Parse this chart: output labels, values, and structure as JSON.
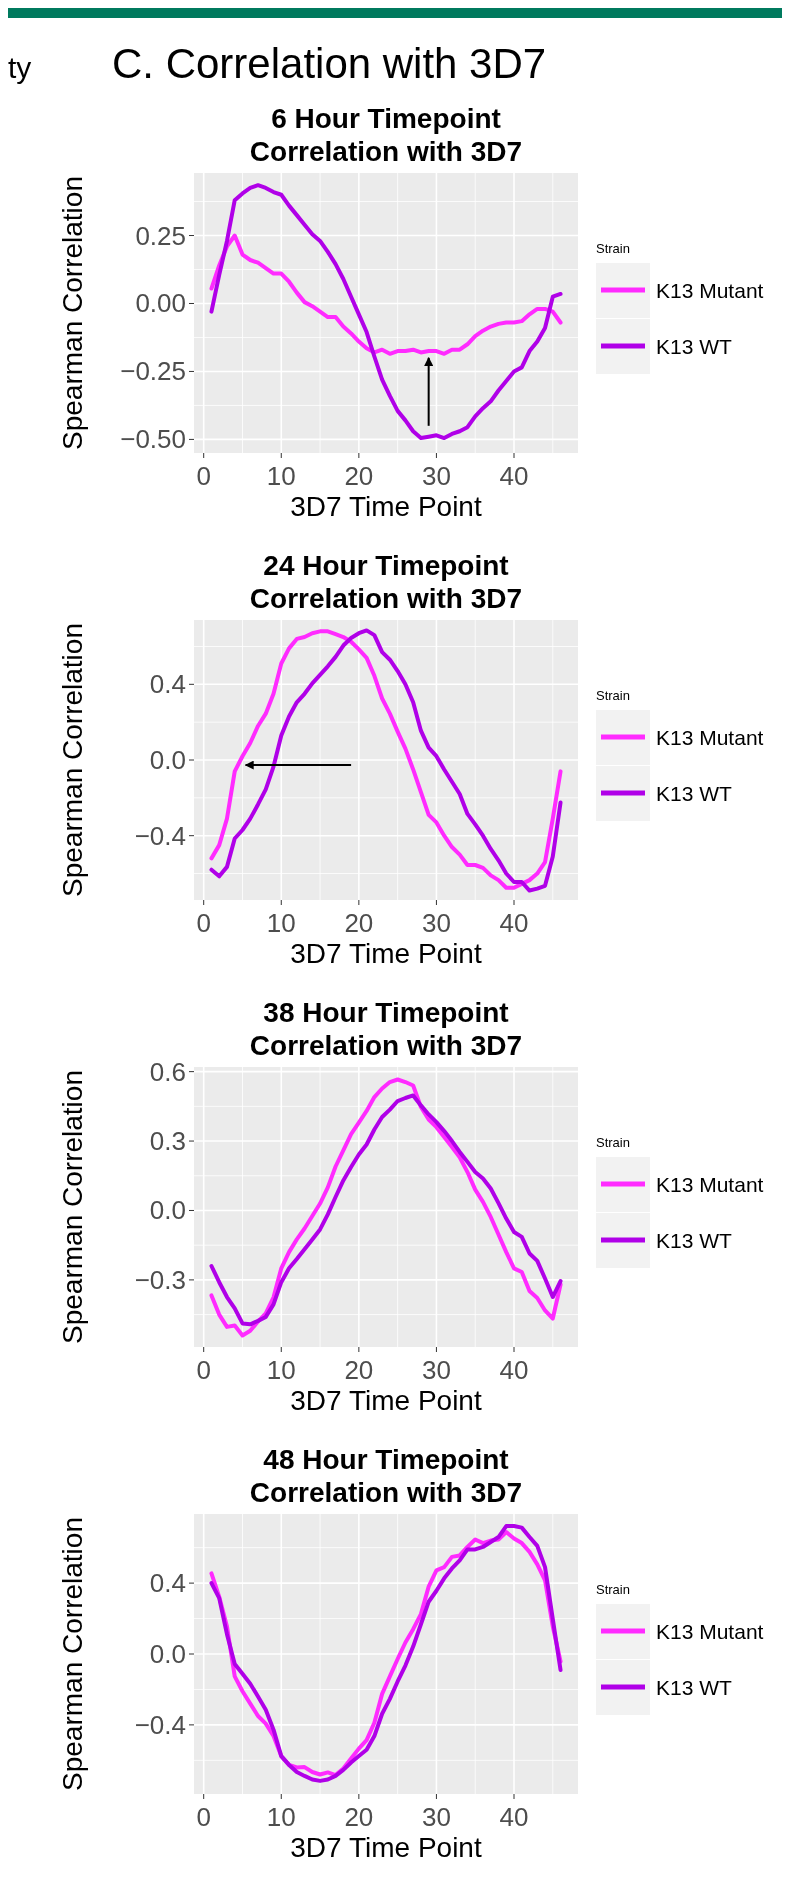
{
  "chart_data": [
    {
      "type": "line",
      "title": "6 Hour Timepoint\nCorrelation with 3D7",
      "xlabel": "3D7 Time Point",
      "ylabel": "Spearman Correlation",
      "legend_title": "Strain",
      "legend": "right",
      "grid": true,
      "annotations": [
        "ty",
        "C. Correlation with 3D7"
      ],
      "xlim": [
        -1.25,
        48.25
      ],
      "xticks": [
        0,
        10,
        20,
        30,
        40
      ],
      "ylim": [
        -0.55,
        0.48
      ],
      "yticks": [
        {
          "value": -0.5,
          "label": "−0.50"
        },
        {
          "value": -0.25,
          "label": "−0.25"
        },
        {
          "value": 0,
          "label": "0.00"
        },
        {
          "value": 0.25,
          "label": "0.25"
        }
      ],
      "x": [
        1,
        2,
        3,
        4,
        5,
        6,
        7,
        8,
        9,
        10,
        11,
        12,
        13,
        14,
        15,
        16,
        17,
        18,
        19,
        20,
        21,
        22,
        23,
        24,
        25,
        26,
        27,
        28,
        29,
        30,
        31,
        32,
        33,
        34,
        35,
        36,
        37,
        38,
        39,
        40,
        41,
        42,
        43,
        44,
        45,
        46
      ],
      "series": [
        {
          "name": "K13 Mutant",
          "color": "#ff2bff",
          "values": [
            0.055,
            0.14,
            0.21,
            0.25,
            0.18,
            0.16,
            0.15,
            0.13,
            0.11,
            0.11,
            0.08,
            0.04,
            0.005,
            -0.01,
            -0.03,
            -0.05,
            -0.05,
            -0.085,
            -0.11,
            -0.14,
            -0.165,
            -0.18,
            -0.17,
            -0.185,
            -0.175,
            -0.175,
            -0.17,
            -0.18,
            -0.175,
            -0.175,
            -0.185,
            -0.17,
            -0.17,
            -0.15,
            -0.12,
            -0.1,
            -0.085,
            -0.075,
            -0.07,
            -0.07,
            -0.065,
            -0.04,
            -0.02,
            -0.02,
            -0.03,
            -0.07
          ]
        },
        {
          "name": "K13 WT",
          "color": "#b000e8",
          "values": [
            -0.03,
            0.105,
            0.23,
            0.38,
            0.405,
            0.425,
            0.435,
            0.425,
            0.41,
            0.4,
            0.36,
            0.325,
            0.29,
            0.255,
            0.23,
            0.19,
            0.145,
            0.09,
            0.025,
            -0.04,
            -0.105,
            -0.195,
            -0.28,
            -0.34,
            -0.395,
            -0.43,
            -0.47,
            -0.495,
            -0.49,
            -0.485,
            -0.495,
            -0.48,
            -0.47,
            -0.455,
            -0.415,
            -0.385,
            -0.36,
            -0.32,
            -0.285,
            -0.25,
            -0.235,
            -0.175,
            -0.14,
            -0.09,
            0.025,
            0.035
          ]
        }
      ]
    },
    {
      "type": "line",
      "title": "24 Hour Timepoint\nCorrelation with 3D7",
      "xlabel": "3D7 Time Point",
      "ylabel": "Spearman Correlation",
      "legend_title": "Strain",
      "legend": "right",
      "grid": true,
      "xlim": [
        -1.25,
        48.25
      ],
      "xticks": [
        0,
        10,
        20,
        30,
        40
      ],
      "ylim": [
        -0.74,
        0.74
      ],
      "yticks": [
        {
          "value": -0.4,
          "label": "−0.4"
        },
        {
          "value": 0,
          "label": "0.0"
        },
        {
          "value": 0.4,
          "label": "0.4"
        }
      ],
      "x": [
        1,
        2,
        3,
        4,
        5,
        6,
        7,
        8,
        9,
        10,
        11,
        12,
        13,
        14,
        15,
        16,
        17,
        18,
        19,
        20,
        21,
        22,
        23,
        24,
        25,
        26,
        27,
        28,
        29,
        30,
        31,
        32,
        33,
        34,
        35,
        36,
        37,
        38,
        39,
        40,
        41,
        42,
        43,
        44,
        45,
        46
      ],
      "series": [
        {
          "name": "K13 Mutant",
          "color": "#ff2bff",
          "values": [
            -0.52,
            -0.45,
            -0.31,
            -0.06,
            0.02,
            0.09,
            0.18,
            0.245,
            0.35,
            0.51,
            0.59,
            0.64,
            0.65,
            0.67,
            0.68,
            0.68,
            0.665,
            0.65,
            0.625,
            0.585,
            0.54,
            0.445,
            0.325,
            0.245,
            0.15,
            0.06,
            -0.05,
            -0.17,
            -0.29,
            -0.33,
            -0.4,
            -0.46,
            -0.5,
            -0.555,
            -0.555,
            -0.57,
            -0.61,
            -0.635,
            -0.675,
            -0.675,
            -0.655,
            -0.635,
            -0.6,
            -0.54,
            -0.31,
            -0.06
          ]
        },
        {
          "name": "K13 WT",
          "color": "#b000e8",
          "values": [
            -0.58,
            -0.615,
            -0.565,
            -0.415,
            -0.37,
            -0.31,
            -0.235,
            -0.155,
            -0.035,
            0.13,
            0.23,
            0.305,
            0.35,
            0.405,
            0.45,
            0.495,
            0.545,
            0.605,
            0.645,
            0.67,
            0.685,
            0.66,
            0.57,
            0.53,
            0.47,
            0.4,
            0.305,
            0.155,
            0.065,
            0.02,
            -0.05,
            -0.115,
            -0.18,
            -0.285,
            -0.34,
            -0.4,
            -0.47,
            -0.53,
            -0.6,
            -0.645,
            -0.645,
            -0.69,
            -0.68,
            -0.665,
            -0.51,
            -0.225
          ]
        }
      ]
    },
    {
      "type": "line",
      "title": "38 Hour Timepoint\nCorrelation with 3D7",
      "xlabel": "3D7 Time Point",
      "ylabel": "Spearman Correlation",
      "legend_title": "Strain",
      "legend": "right",
      "grid": true,
      "xlim": [
        -1.25,
        48.25
      ],
      "xticks": [
        0,
        10,
        20,
        30,
        40
      ],
      "ylim": [
        -0.59,
        0.62
      ],
      "yticks": [
        {
          "value": -0.3,
          "label": "−0.3"
        },
        {
          "value": 0,
          "label": "0.0"
        },
        {
          "value": 0.3,
          "label": "0.3"
        },
        {
          "value": 0.6,
          "label": "0.6"
        }
      ],
      "x": [
        1,
        2,
        3,
        4,
        5,
        6,
        7,
        8,
        9,
        10,
        11,
        12,
        13,
        14,
        15,
        16,
        17,
        18,
        19,
        20,
        21,
        22,
        23,
        24,
        25,
        26,
        27,
        28,
        29,
        30,
        31,
        32,
        33,
        34,
        35,
        36,
        37,
        38,
        39,
        40,
        41,
        42,
        43,
        44,
        45,
        46
      ],
      "series": [
        {
          "name": "K13 Mutant",
          "color": "#ff2bff",
          "values": [
            -0.367,
            -0.45,
            -0.503,
            -0.497,
            -0.54,
            -0.52,
            -0.48,
            -0.445,
            -0.375,
            -0.25,
            -0.18,
            -0.125,
            -0.078,
            -0.024,
            0.03,
            0.1,
            0.19,
            0.26,
            0.33,
            0.38,
            0.43,
            0.49,
            0.527,
            0.555,
            0.566,
            0.555,
            0.54,
            0.447,
            0.393,
            0.36,
            0.317,
            0.274,
            0.23,
            0.166,
            0.09,
            0.037,
            -0.028,
            -0.104,
            -0.18,
            -0.25,
            -0.266,
            -0.348,
            -0.378,
            -0.432,
            -0.467,
            -0.32
          ]
        },
        {
          "name": "K13 WT",
          "color": "#b000e8",
          "values": [
            -0.24,
            -0.31,
            -0.374,
            -0.423,
            -0.488,
            -0.492,
            -0.477,
            -0.46,
            -0.406,
            -0.31,
            -0.25,
            -0.21,
            -0.168,
            -0.125,
            -0.082,
            -0.017,
            0.058,
            0.13,
            0.188,
            0.242,
            0.285,
            0.35,
            0.404,
            0.436,
            0.473,
            0.486,
            0.497,
            0.454,
            0.415,
            0.382,
            0.343,
            0.3,
            0.253,
            0.21,
            0.166,
            0.138,
            0.095,
            0.032,
            -0.035,
            -0.093,
            -0.114,
            -0.186,
            -0.218,
            -0.294,
            -0.374,
            -0.305
          ]
        }
      ]
    },
    {
      "type": "line",
      "title": "48 Hour Timepoint\nCorrelation with 3D7",
      "xlabel": "3D7 Time Point",
      "ylabel": "Spearman Correlation",
      "legend_title": "Strain",
      "legend": "right",
      "grid": true,
      "xlim": [
        -1.25,
        48.25
      ],
      "xticks": [
        0,
        10,
        20,
        30,
        40
      ],
      "ylim": [
        -0.79,
        0.79
      ],
      "yticks": [
        {
          "value": -0.4,
          "label": "−0.4"
        },
        {
          "value": 0,
          "label": "0.0"
        },
        {
          "value": 0.4,
          "label": "0.4"
        }
      ],
      "x": [
        1,
        2,
        3,
        4,
        5,
        6,
        7,
        8,
        9,
        10,
        11,
        12,
        13,
        14,
        15,
        16,
        17,
        18,
        19,
        20,
        21,
        22,
        23,
        24,
        25,
        26,
        27,
        28,
        29,
        30,
        31,
        32,
        33,
        34,
        35,
        36,
        37,
        38,
        39,
        40,
        41,
        42,
        43,
        44,
        45,
        46
      ],
      "series": [
        {
          "name": "K13 Mutant",
          "color": "#ff2bff",
          "values": [
            0.455,
            0.323,
            0.155,
            -0.126,
            -0.21,
            -0.28,
            -0.35,
            -0.393,
            -0.463,
            -0.576,
            -0.626,
            -0.64,
            -0.638,
            -0.666,
            -0.68,
            -0.668,
            -0.683,
            -0.646,
            -0.59,
            -0.534,
            -0.486,
            -0.388,
            -0.225,
            -0.126,
            -0.028,
            0.065,
            0.14,
            0.225,
            0.38,
            0.472,
            0.49,
            0.548,
            0.556,
            0.604,
            0.646,
            0.626,
            0.64,
            0.646,
            0.688,
            0.652,
            0.626,
            0.576,
            0.506,
            0.416,
            0.155,
            -0.042
          ]
        },
        {
          "name": "K13 WT",
          "color": "#b000e8",
          "values": [
            0.4,
            0.315,
            0.112,
            -0.056,
            -0.112,
            -0.168,
            -0.24,
            -0.315,
            -0.427,
            -0.576,
            -0.626,
            -0.666,
            -0.688,
            -0.708,
            -0.716,
            -0.708,
            -0.688,
            -0.654,
            -0.612,
            -0.576,
            -0.54,
            -0.463,
            -0.337,
            -0.253,
            -0.155,
            -0.065,
            0.042,
            0.168,
            0.295,
            0.357,
            0.427,
            0.483,
            0.528,
            0.59,
            0.59,
            0.604,
            0.632,
            0.66,
            0.722,
            0.722,
            0.713,
            0.66,
            0.61,
            0.49,
            0.197,
            -0.09
          ]
        }
      ]
    }
  ]
}
